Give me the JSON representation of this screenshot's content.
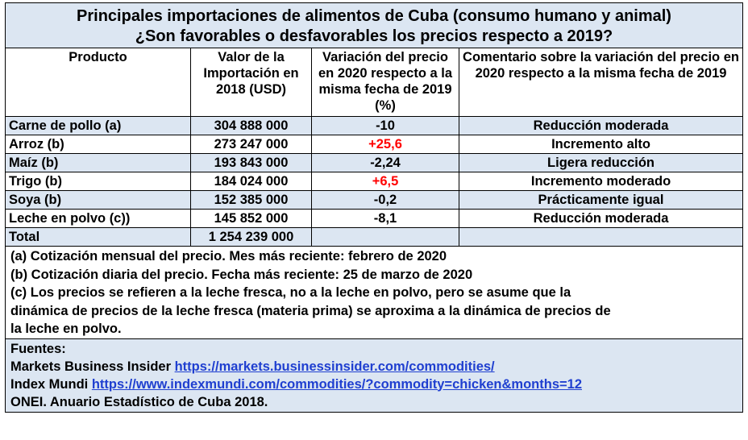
{
  "title": {
    "line1": "Principales importaciones de alimentos de Cuba (consumo humano y animal)",
    "line2": "¿Son favorables o desfavorables los precios respecto a 2019?"
  },
  "headers": {
    "product": "Producto",
    "value": "Valor de la Importación en 2018 (USD)",
    "variation": "Variación del precio en 2020 respecto a la misma fecha de 2019 (%)",
    "comment": "Comentario sobre la variación del precio en 2020 respecto a la misma fecha de 2019"
  },
  "rows": [
    {
      "product": "Carne de pollo (a)",
      "value": "304 888 000",
      "variation": "-10",
      "comment": "Reducción moderada",
      "highlight": true,
      "red": false
    },
    {
      "product": "Arroz (b)",
      "value": "273 247 000",
      "variation": "+25,6",
      "comment": "Incremento alto",
      "highlight": false,
      "red": true
    },
    {
      "product": "Maíz (b)",
      "value": "193 843 000",
      "variation": "-2,24",
      "comment": "Ligera reducción",
      "highlight": true,
      "red": false
    },
    {
      "product": "Trigo (b)",
      "value": "184 024 000",
      "variation": "+6,5",
      "comment": "Incremento moderado",
      "highlight": false,
      "red": true
    },
    {
      "product": "Soya (b)",
      "value": "152 385 000",
      "variation": "-0,2",
      "comment": "Prácticamente igual",
      "highlight": true,
      "red": false
    },
    {
      "product": "Leche en polvo (c))",
      "value": "145 852 000",
      "variation": "-8,1",
      "comment": "Reducción moderada",
      "highlight": false,
      "red": false
    }
  ],
  "total": {
    "label": "Total",
    "value": "1 254 239 000"
  },
  "notes": {
    "a": "(a) Cotización mensual del precio. Mes más reciente: febrero de 2020",
    "b": "(b) Cotización diaria del precio. Fecha más reciente: 25 de marzo de 2020",
    "c1": "(c) Los precios se refieren a la leche fresca, no a la leche en polvo, pero se asume que la",
    "c2": "dinámica de precios de la leche fresca (materia prima) se aproxima a la dinámica de precios de",
    "c3": "la leche en polvo."
  },
  "sources": {
    "heading": "Fuentes:",
    "s1_name": "Markets Business Insider",
    "s1_url": "https://markets.businessinsider.com/commodities/",
    "s2_name": "Index Mundi",
    "s2_url": "https://www.indexmundi.com/commodities/?commodity=chicken&months=12",
    "s3": "ONEI. Anuario Estadístico de Cuba 2018."
  },
  "colors": {
    "highlight": "#dce6f2",
    "positive_variation": "#ff0000",
    "link": "#1f3fd0"
  }
}
